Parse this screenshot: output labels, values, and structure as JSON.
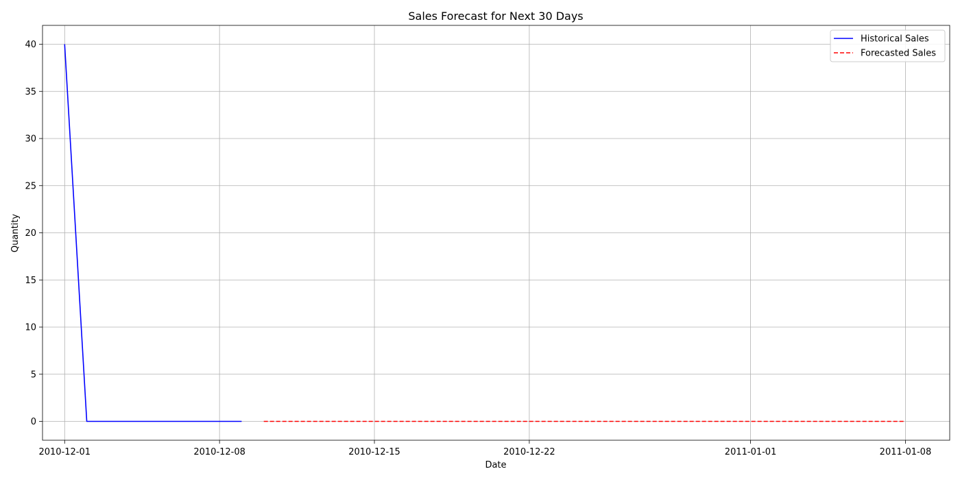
{
  "chart_data": {
    "type": "line",
    "title": "Sales Forecast for Next 30 Days",
    "xlabel": "Date",
    "ylabel": "Quantity",
    "x_type": "date",
    "xlim": [
      "2010-11-30",
      "2011-01-10"
    ],
    "ylim": [
      -2,
      42
    ],
    "x_ticks": [
      "2010-12-01",
      "2010-12-08",
      "2010-12-15",
      "2010-12-22",
      "2011-01-01",
      "2011-01-08"
    ],
    "x_tick_labels": [
      "2010-12-01",
      "2010-12-08",
      "2010-12-15",
      "2010-12-22",
      "2011-01-01",
      "2011-01-08"
    ],
    "y_ticks": [
      0,
      5,
      10,
      15,
      20,
      25,
      30,
      35,
      40
    ],
    "y_tick_labels": [
      "0",
      "5",
      "10",
      "15",
      "20",
      "25",
      "30",
      "35",
      "40"
    ],
    "grid": true,
    "legend": {
      "position": "top-right"
    },
    "series": [
      {
        "name": "Historical Sales",
        "color": "#0000ff",
        "line_style": "solid",
        "points": [
          {
            "x": "2010-12-01",
            "y": 40
          },
          {
            "x": "2010-12-02",
            "y": 0
          },
          {
            "x": "2010-12-03",
            "y": 0
          },
          {
            "x": "2010-12-04",
            "y": 0
          },
          {
            "x": "2010-12-05",
            "y": 0
          },
          {
            "x": "2010-12-06",
            "y": 0
          },
          {
            "x": "2010-12-07",
            "y": 0
          },
          {
            "x": "2010-12-08",
            "y": 0
          },
          {
            "x": "2010-12-09",
            "y": 0
          }
        ]
      },
      {
        "name": "Forecasted Sales",
        "color": "#ff0000",
        "line_style": "dashed",
        "points": [
          {
            "x": "2010-12-10",
            "y": 0
          },
          {
            "x": "2011-01-08",
            "y": 0
          }
        ]
      }
    ]
  }
}
